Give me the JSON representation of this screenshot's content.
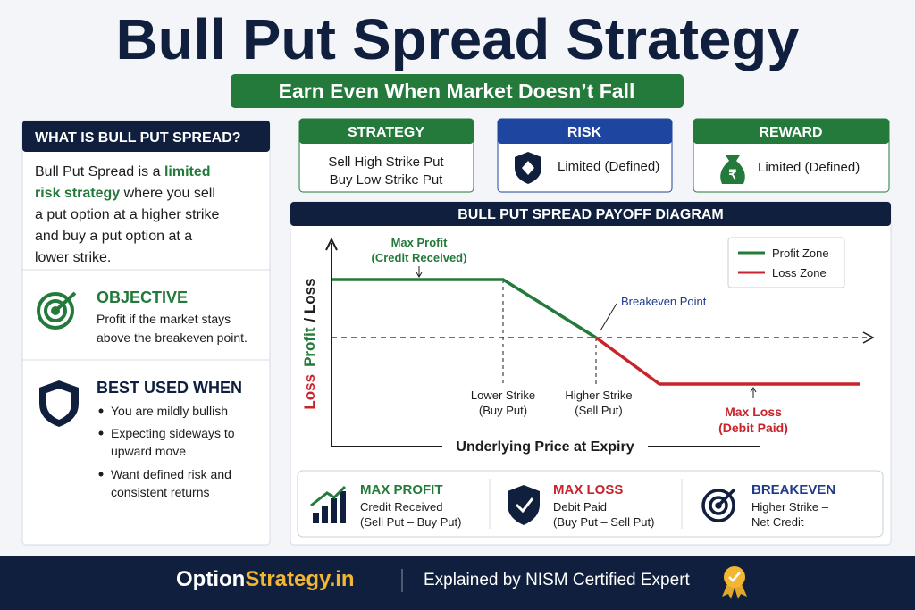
{
  "header": {
    "title": "Bull Put Spread Strategy",
    "subtitle": "Earn Even When Market Doesn’t Fall"
  },
  "what_is": {
    "heading": "WHAT IS BULL PUT SPREAD?",
    "lines": [
      [
        "Bull Put Spread is a ",
        "limited"
      ],
      [
        "risk strategy",
        " where you sell"
      ],
      [
        "a put option at a higher strike"
      ],
      [
        "and buy a put option at a"
      ],
      [
        "lower strike."
      ]
    ]
  },
  "objective": {
    "heading": "OBJECTIVE",
    "lines": [
      "Profit if the market stays",
      "above the breakeven point."
    ]
  },
  "best_used": {
    "heading": "BEST USED WHEN",
    "items": [
      [
        "You are mildly bullish"
      ],
      [
        "Expecting sideways to",
        "upward move"
      ],
      [
        "Want defined risk and",
        "consistent returns"
      ]
    ]
  },
  "cards": {
    "strategy": {
      "heading": "STRATEGY",
      "lines": [
        "Sell High Strike Put",
        "Buy Low Strike Put"
      ]
    },
    "risk": {
      "heading": "RISK",
      "text": "Limited (Defined)"
    },
    "reward": {
      "heading": "REWARD",
      "text": "Limited (Defined)"
    }
  },
  "diagram": {
    "title": "BULL PUT SPREAD PAYOFF DIAGRAM",
    "y_label": [
      "Loss",
      "Profit",
      "/ Loss"
    ],
    "x_label": "Underlying Price at Expiry",
    "max_profit": [
      "Max Profit",
      "(Credit Received)"
    ],
    "breakeven": "Breakeven Point",
    "lower_strike": [
      "Lower Strike",
      "(Buy Put)"
    ],
    "higher_strike": [
      "Higher Strike",
      "(Sell Put)"
    ],
    "max_loss": [
      "Max Loss",
      "(Debit Paid)"
    ],
    "legend": [
      "Profit Zone",
      "Loss Zone"
    ]
  },
  "summary": [
    {
      "heading": "MAX PROFIT",
      "lines": [
        "Credit Received",
        "(Sell Put – Buy Put)"
      ]
    },
    {
      "heading": "MAX LOSS",
      "lines": [
        "Debit Paid",
        "(Buy Put – Sell Put)"
      ]
    },
    {
      "heading": "BREAKEVEN",
      "lines": [
        "Higher Strike –",
        "Net Credit"
      ]
    }
  ],
  "footer": {
    "brand": [
      "Option",
      "Strategy.in"
    ],
    "tagline": "Explained by NISM Certified Expert"
  }
}
